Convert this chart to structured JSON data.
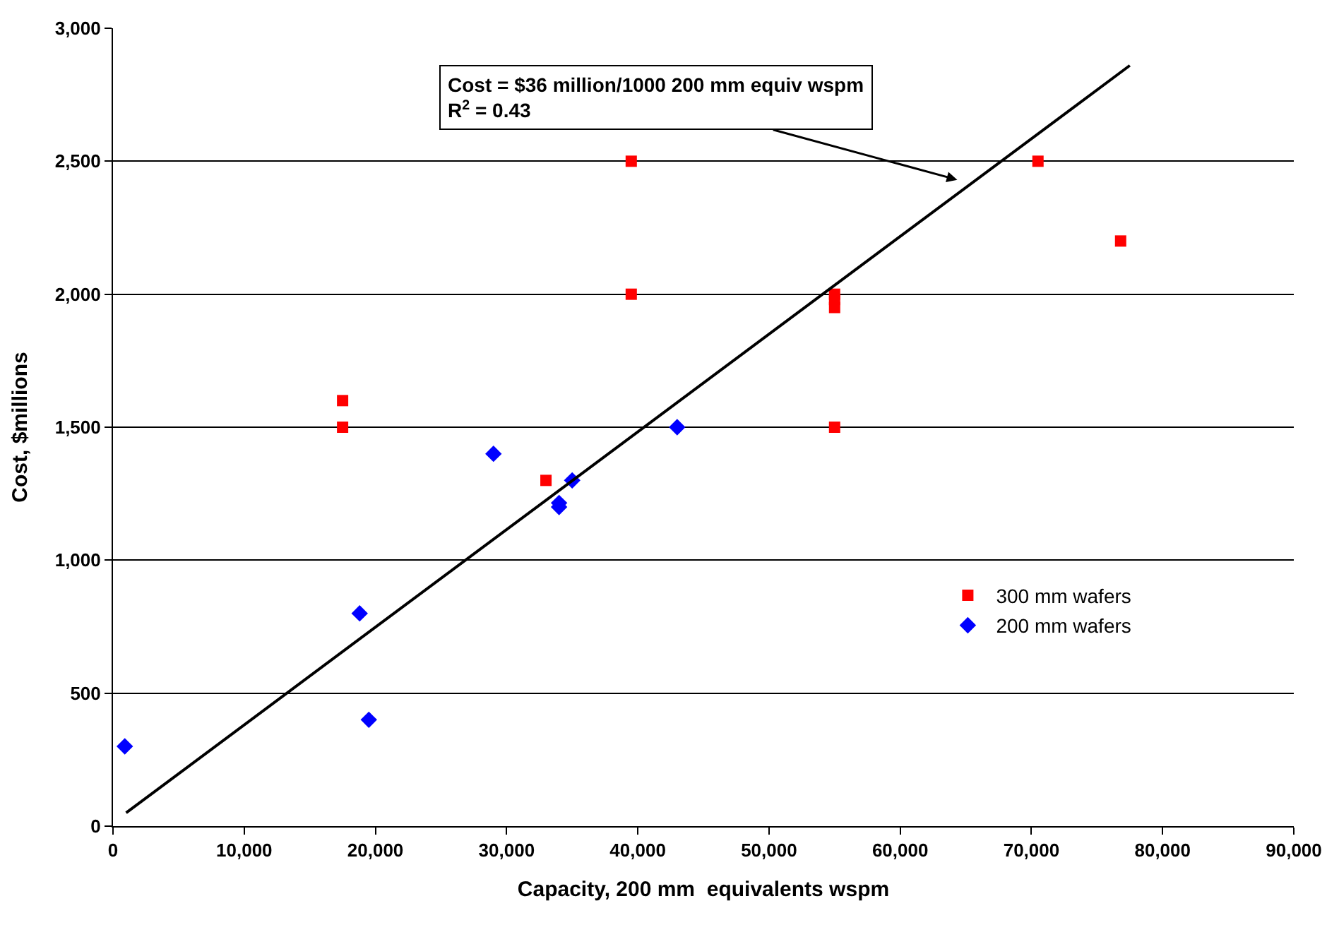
{
  "chart_data": {
    "type": "scatter",
    "xlabel": "Capacity, 200 mm  equivalents wspm",
    "ylabel": "Cost, $millions",
    "xlim": [
      0,
      90000
    ],
    "ylim": [
      0,
      3000
    ],
    "xticks": [
      {
        "value": 0,
        "label": "0"
      },
      {
        "value": 10000,
        "label": "10,000"
      },
      {
        "value": 20000,
        "label": "20,000"
      },
      {
        "value": 30000,
        "label": "30,000"
      },
      {
        "value": 40000,
        "label": "40,000"
      },
      {
        "value": 50000,
        "label": "50,000"
      },
      {
        "value": 60000,
        "label": "60,000"
      },
      {
        "value": 70000,
        "label": "70,000"
      },
      {
        "value": 80000,
        "label": "80,000"
      },
      {
        "value": 90000,
        "label": "90,000"
      }
    ],
    "yticks": [
      {
        "value": 0,
        "label": "0"
      },
      {
        "value": 500,
        "label": "500"
      },
      {
        "value": 1000,
        "label": "1,000"
      },
      {
        "value": 1500,
        "label": "1,500"
      },
      {
        "value": 2000,
        "label": "2,000"
      },
      {
        "value": 2500,
        "label": "2,500"
      },
      {
        "value": 3000,
        "label": "3,000"
      }
    ],
    "grid": "y",
    "legend": "right",
    "series": [
      {
        "name": "300 mm wafers",
        "color": "#ff0000",
        "marker": "square",
        "x": [
          17500,
          17500,
          33000,
          39500,
          39500,
          55000,
          55000,
          55000,
          55000,
          70500,
          76800
        ],
        "values": [
          1600,
          1500,
          1300,
          2500,
          2000,
          2000,
          1980,
          1950,
          1500,
          2500,
          2200
        ]
      },
      {
        "name": "200 mm wafers",
        "color": "#0000ff",
        "marker": "diamond",
        "x": [
          900,
          18800,
          19500,
          29000,
          34000,
          34000,
          35000,
          43000
        ],
        "values": [
          300,
          800,
          400,
          1400,
          1215,
          1200,
          1300,
          1500
        ]
      },
      {
        "type": "line",
        "color": "#000000",
        "marker": "none",
        "x": [
          1000,
          77500
        ],
        "values": [
          50,
          2860
        ]
      }
    ],
    "annotations": [
      "Cost = $36 million/1000 200 mm equiv wspm\nR$^{2}$ = 0.43"
    ]
  }
}
